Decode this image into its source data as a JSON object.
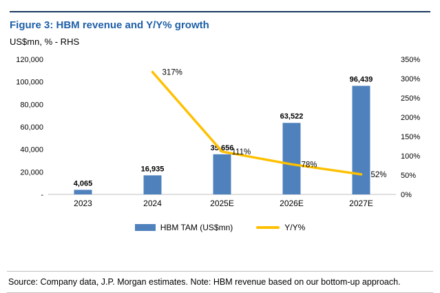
{
  "figure": {
    "title": "Figure 3: HBM revenue and Y/Y% growth",
    "subtitle": "US$mn, % - RHS",
    "source": "Source: Company data, J.P. Morgan estimates. Note: HBM revenue based on our bottom-up approach."
  },
  "colors": {
    "title": "#1F5FA8",
    "top_rule": "#17365D",
    "bar": "#4F81BD",
    "line": "#FFC000",
    "axis_line": "#BFBFBF",
    "divider": "#BFBFBF"
  },
  "chart_data": {
    "type": "bar+line combo",
    "title": "Figure 3: HBM revenue and Y/Y% growth",
    "subtitle": "US$mn, % - RHS",
    "categories": [
      "2023",
      "2024",
      "2025E",
      "2026E",
      "2027E"
    ],
    "series": [
      {
        "name": "HBM TAM (US$mn)",
        "type": "bar",
        "axis": "left",
        "values": [
          4065,
          16935,
          35656,
          63522,
          96439
        ],
        "labels": [
          "4,065",
          "16,935",
          "35,656",
          "63,522",
          "96,439"
        ]
      },
      {
        "name": "Y/Y%",
        "type": "line",
        "axis": "right",
        "values": [
          null,
          317,
          111,
          78,
          52
        ],
        "labels": [
          null,
          "317%",
          "111%",
          "78%",
          "52%"
        ]
      }
    ],
    "left_axis": {
      "min": 0,
      "max": 120000,
      "step": 20000,
      "tick_labels": [
        "-",
        "20,000",
        "40,000",
        "60,000",
        "80,000",
        "100,000",
        "120,000"
      ]
    },
    "right_axis": {
      "min": 0,
      "max": 350,
      "step": 50,
      "tick_labels": [
        "0%",
        "50%",
        "100%",
        "150%",
        "200%",
        "250%",
        "300%",
        "350%"
      ]
    },
    "legend": [
      "HBM TAM (US$mn)",
      "Y/Y%"
    ],
    "legend_position": "bottom",
    "grid": false
  }
}
